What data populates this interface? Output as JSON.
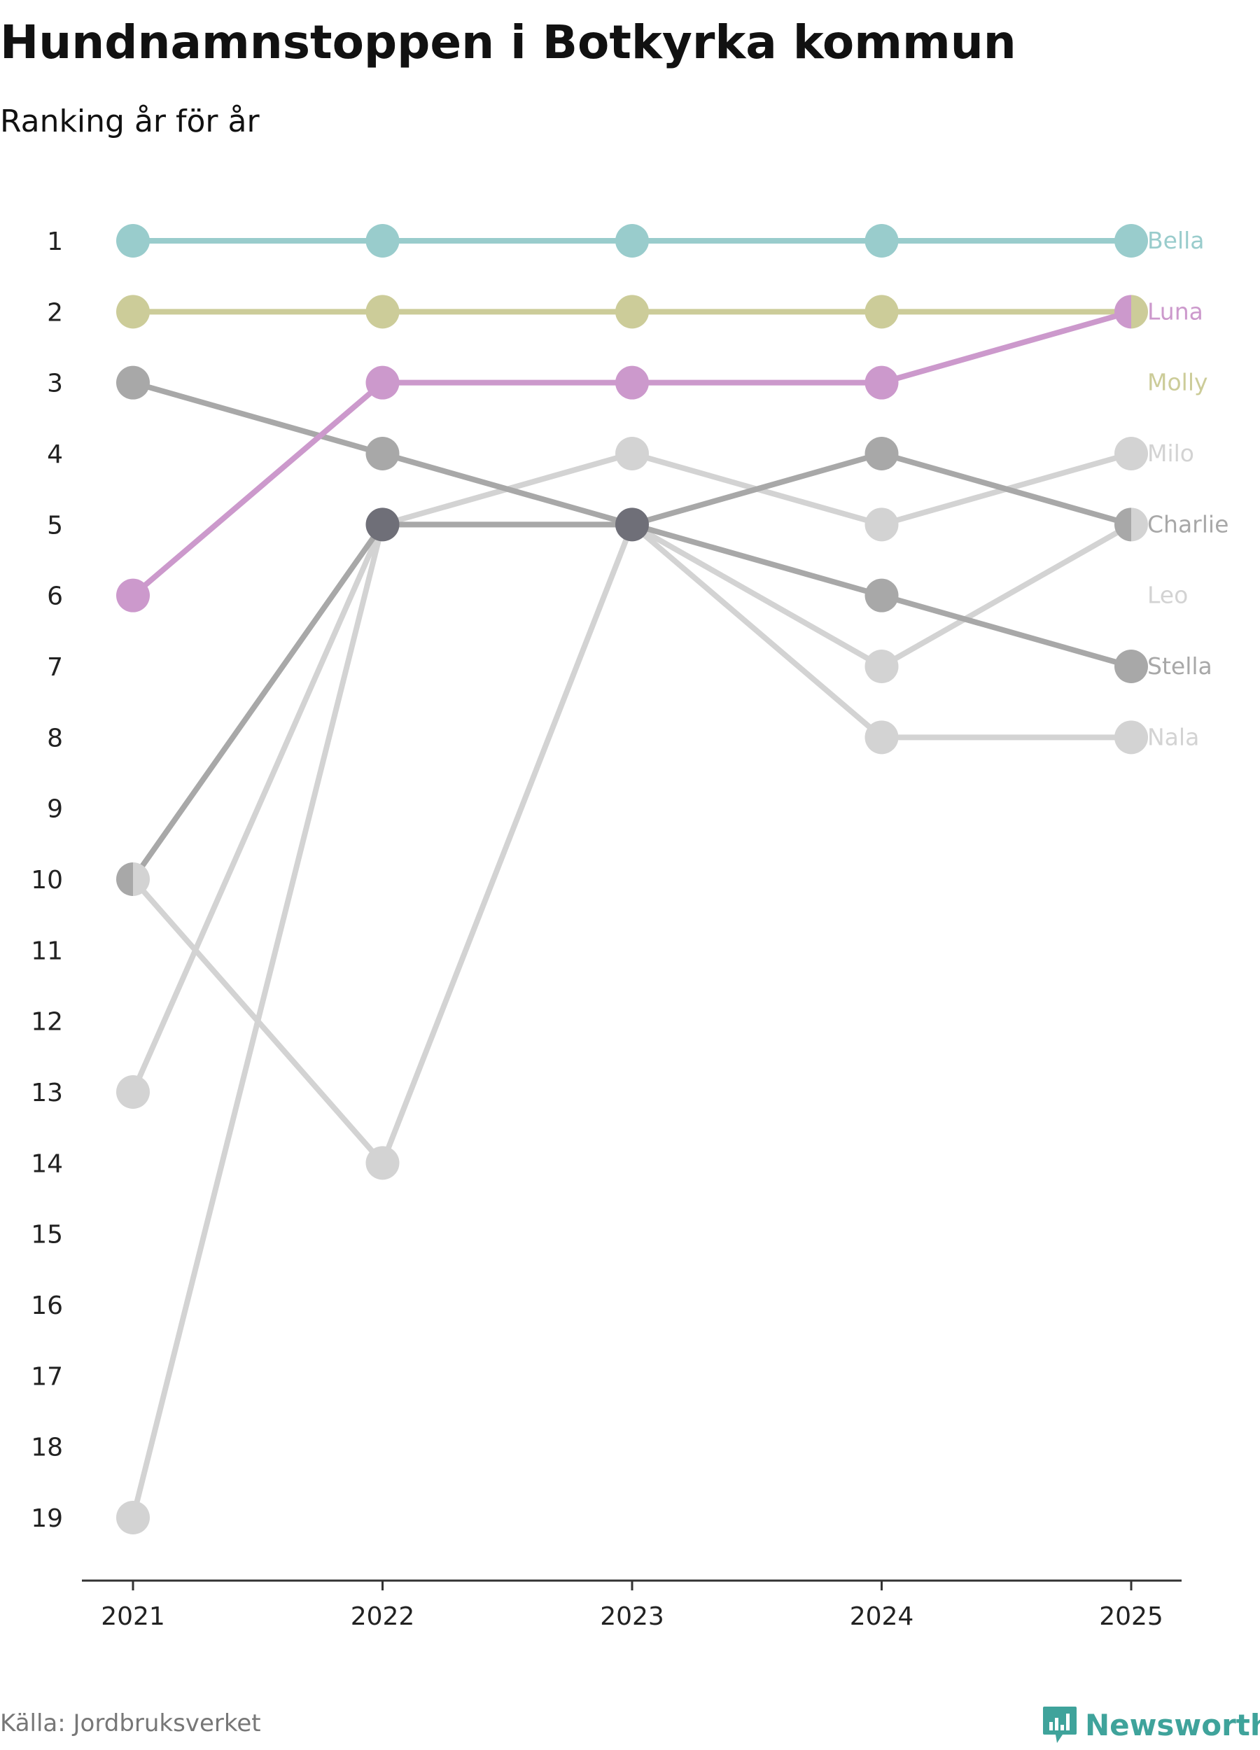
{
  "title": "Hundnamnstoppen i Botkyrka kommun",
  "subtitle": "Ranking år för år",
  "source": "Källa: Jordbruksverket",
  "brand": "Newsworthy",
  "colors": {
    "bella": "#99cccc",
    "luna": "#cc99cc",
    "molly": "#cccc99",
    "grey_dark": "#a8a8a8",
    "grey_light": "#d3d3d3",
    "overlap": "#6f6f78",
    "brand": "#3fa39b",
    "axis": "#333333"
  },
  "chart_data": {
    "type": "line",
    "subtype": "bump",
    "title": "Hundnamnstoppen i Botkyrka kommun",
    "subtitle": "Ranking år för år",
    "x": [
      "2021",
      "2022",
      "2023",
      "2024",
      "2025"
    ],
    "y_ticks": [
      1,
      2,
      3,
      4,
      5,
      6,
      7,
      8,
      9,
      10,
      11,
      12,
      13,
      14,
      15,
      16,
      17,
      18,
      19
    ],
    "ylim": [
      1,
      19
    ],
    "y_reversed": true,
    "series": [
      {
        "name": "Nala",
        "color": "#d3d3d3",
        "values": [
          19,
          5,
          5,
          8,
          8
        ]
      },
      {
        "name": "Leo",
        "color": "#d3d3d3",
        "values": [
          10,
          14,
          5,
          7,
          5
        ]
      },
      {
        "name": "Milo",
        "color": "#d3d3d3",
        "values": [
          13,
          5,
          4,
          5,
          4
        ]
      },
      {
        "name": "Stella",
        "color": "#a8a8a8",
        "values": [
          3,
          4,
          5,
          6,
          7
        ]
      },
      {
        "name": "Charlie",
        "color": "#a8a8a8",
        "values": [
          10,
          5,
          5,
          4,
          5
        ]
      },
      {
        "name": "Molly",
        "color": "#cccc99",
        "values": [
          2,
          2,
          2,
          2,
          2
        ]
      },
      {
        "name": "Luna",
        "color": "#cc99cc",
        "values": [
          6,
          3,
          3,
          3,
          2
        ]
      },
      {
        "name": "Bella",
        "color": "#99cccc",
        "values": [
          1,
          1,
          1,
          1,
          1
        ]
      }
    ],
    "end_labels": [
      {
        "name": "Bella",
        "rank": 1,
        "color": "#99cccc"
      },
      {
        "name": "Luna",
        "rank": 2,
        "color": "#cc99cc"
      },
      {
        "name": "Molly",
        "rank": 3,
        "color": "#cccc99"
      },
      {
        "name": "Milo",
        "rank": 4,
        "color": "#d3d3d3"
      },
      {
        "name": "Charlie",
        "rank": 5,
        "color": "#a8a8a8"
      },
      {
        "name": "Leo",
        "rank": 6,
        "color": "#d3d3d3"
      },
      {
        "name": "Stella",
        "rank": 7,
        "color": "#a8a8a8"
      },
      {
        "name": "Nala",
        "rank": 8,
        "color": "#d3d3d3"
      }
    ]
  }
}
